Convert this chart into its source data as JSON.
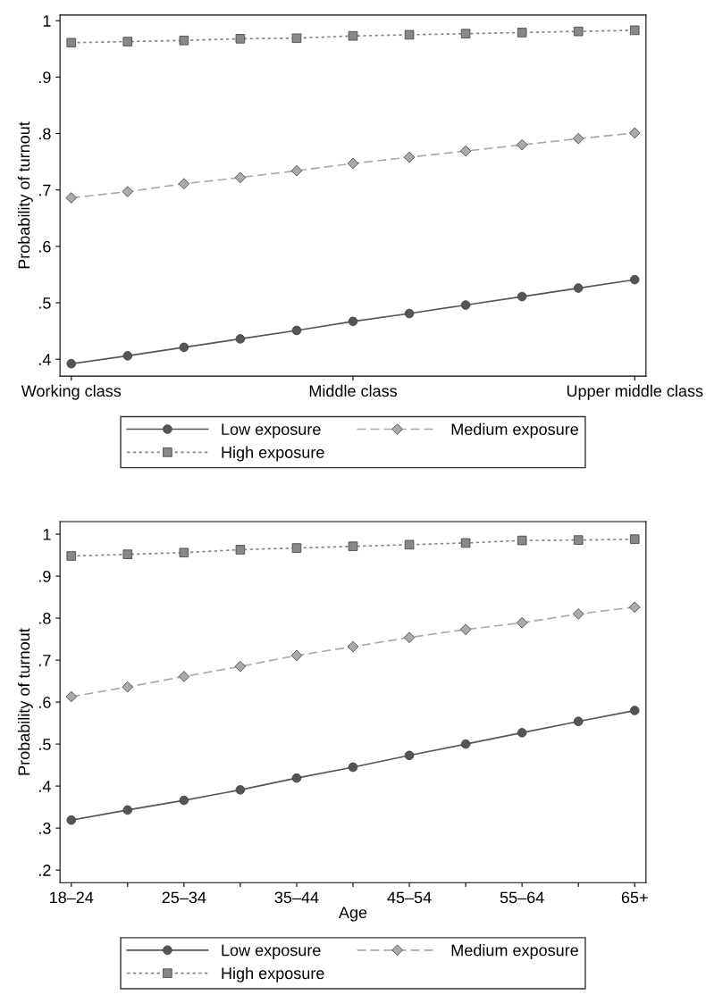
{
  "chart_data": [
    {
      "type": "line",
      "ylabel": "Probability of turnout",
      "categories": [
        "Working class",
        null,
        null,
        null,
        null,
        "Middle class",
        null,
        null,
        null,
        null,
        "Upper middle class"
      ],
      "ylim": [
        0.37,
        1.01
      ],
      "yticks": [
        {
          "value": 0.4,
          "label": ".4"
        },
        {
          "value": 0.5,
          "label": ".5"
        },
        {
          "value": 0.6,
          "label": ".6"
        },
        {
          "value": 0.7,
          "label": ".7"
        },
        {
          "value": 0.8,
          "label": ".8"
        },
        {
          "value": 0.9,
          "label": ".9"
        },
        1
      ],
      "grid": false,
      "legend": "bottom",
      "series": [
        {
          "name": "Low exposure",
          "color": "#555555",
          "marker": "circle",
          "line_style": "solid",
          "values": [
            0.392,
            0.406,
            0.421,
            0.436,
            0.451,
            0.467,
            0.481,
            0.496,
            0.511,
            0.526,
            0.541
          ]
        },
        {
          "name": "Medium exposure",
          "color": "#aaaaaa",
          "marker": "diamond",
          "line_style": "dashed",
          "values": [
            0.686,
            0.697,
            0.711,
            0.722,
            0.734,
            0.747,
            0.758,
            0.769,
            0.78,
            0.791,
            0.801
          ]
        },
        {
          "name": "High exposure",
          "color": "#888888",
          "marker": "square",
          "line_style": "dotted",
          "values": [
            0.961,
            0.963,
            0.965,
            0.968,
            0.969,
            0.973,
            0.975,
            0.977,
            0.979,
            0.981,
            0.983
          ]
        }
      ]
    },
    {
      "type": "line",
      "ylabel": "Probability of turnout",
      "xlabel": "Age",
      "categories": [
        "18–24",
        null,
        "25–34",
        null,
        "35–44",
        null,
        "45–54",
        null,
        "55–64",
        null,
        "65+"
      ],
      "ylim": [
        0.17,
        1.03
      ],
      "yticks": [
        {
          "value": 0.2,
          "label": ".2"
        },
        {
          "value": 0.3,
          "label": ".3"
        },
        {
          "value": 0.4,
          "label": ".4"
        },
        {
          "value": 0.5,
          "label": ".5"
        },
        {
          "value": 0.6,
          "label": ".6"
        },
        {
          "value": 0.7,
          "label": ".7"
        },
        {
          "value": 0.8,
          "label": ".8"
        },
        {
          "value": 0.9,
          "label": ".9"
        },
        1
      ],
      "grid": false,
      "legend": "bottom",
      "series": [
        {
          "name": "Low exposure",
          "color": "#555555",
          "marker": "circle",
          "line_style": "solid",
          "values": [
            0.319,
            0.343,
            0.366,
            0.391,
            0.419,
            0.445,
            0.473,
            0.5,
            0.527,
            0.554,
            0.58
          ]
        },
        {
          "name": "Medium exposure",
          "color": "#aaaaaa",
          "marker": "diamond",
          "line_style": "dashed",
          "values": [
            0.613,
            0.636,
            0.661,
            0.685,
            0.711,
            0.732,
            0.754,
            0.773,
            0.789,
            0.81,
            0.826
          ]
        },
        {
          "name": "High exposure",
          "color": "#888888",
          "marker": "square",
          "line_style": "dotted",
          "values": [
            0.948,
            0.952,
            0.956,
            0.963,
            0.967,
            0.971,
            0.975,
            0.979,
            0.985,
            0.986,
            0.988
          ]
        }
      ]
    }
  ]
}
